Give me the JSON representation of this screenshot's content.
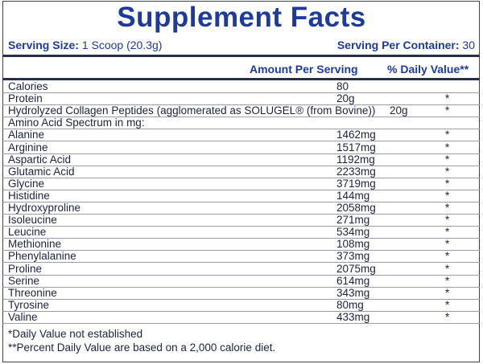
{
  "header": {
    "title": "Supplement Facts",
    "serving_size_label": "Serving Size:",
    "serving_size": "1 Scoop (20.3g)",
    "servings_label": "Serving Per Container:",
    "servings": "30"
  },
  "table": {
    "columns": [
      "Amount Per Serving",
      "% Daily Value**"
    ],
    "rows": [
      {
        "name": "Calories",
        "amount": "80"
      },
      {
        "name": "Protein",
        "amount": "20g",
        "dv": "*"
      },
      {
        "name": "Hydrolyzed Collagen Peptides (agglomerated as SOLUGEL® (from Bovine))",
        "amount": "20g",
        "dv": "*"
      },
      {
        "name": "Amino Acid Spectrum in mg:"
      },
      {
        "name": "Alanine",
        "amount": "1462mg",
        "dv": "*"
      },
      {
        "name": "Arginine",
        "amount": "1517mg",
        "dv": "*"
      },
      {
        "name": "Aspartic Acid",
        "amount": "1192mg",
        "dv": "*"
      },
      {
        "name": "Glutamic Acid",
        "amount": "2233mg",
        "dv": "*"
      },
      {
        "name": "Glycine",
        "amount": "3719mg",
        "dv": "*"
      },
      {
        "name": "Histidine",
        "amount": "144mg",
        "dv": "*"
      },
      {
        "name": "Hydroxyproline",
        "amount": "2058mg",
        "dv": "*"
      },
      {
        "name": "Isoleucine",
        "amount": "271mg",
        "dv": "*"
      },
      {
        "name": "Leucine",
        "amount": "534mg",
        "dv": "*"
      },
      {
        "name": "Methionine",
        "amount": "108mg",
        "dv": "*"
      },
      {
        "name": "Phenylalanine",
        "amount": "373mg",
        "dv": "*"
      },
      {
        "name": "Proline",
        "amount": "2075mg",
        "dv": "*"
      },
      {
        "name": "Serine",
        "amount": "614mg",
        "dv": "*"
      },
      {
        "name": "Threonine",
        "amount": "343mg",
        "dv": "*"
      },
      {
        "name": "Tyrosine",
        "amount": "80mg",
        "dv": "*"
      },
      {
        "name": "Valine",
        "amount": "433mg",
        "dv": "*"
      }
    ]
  },
  "footnotes": [
    "*Daily Value not established",
    "**Percent Daily Value are based on a 2,000 calorie diet."
  ]
}
